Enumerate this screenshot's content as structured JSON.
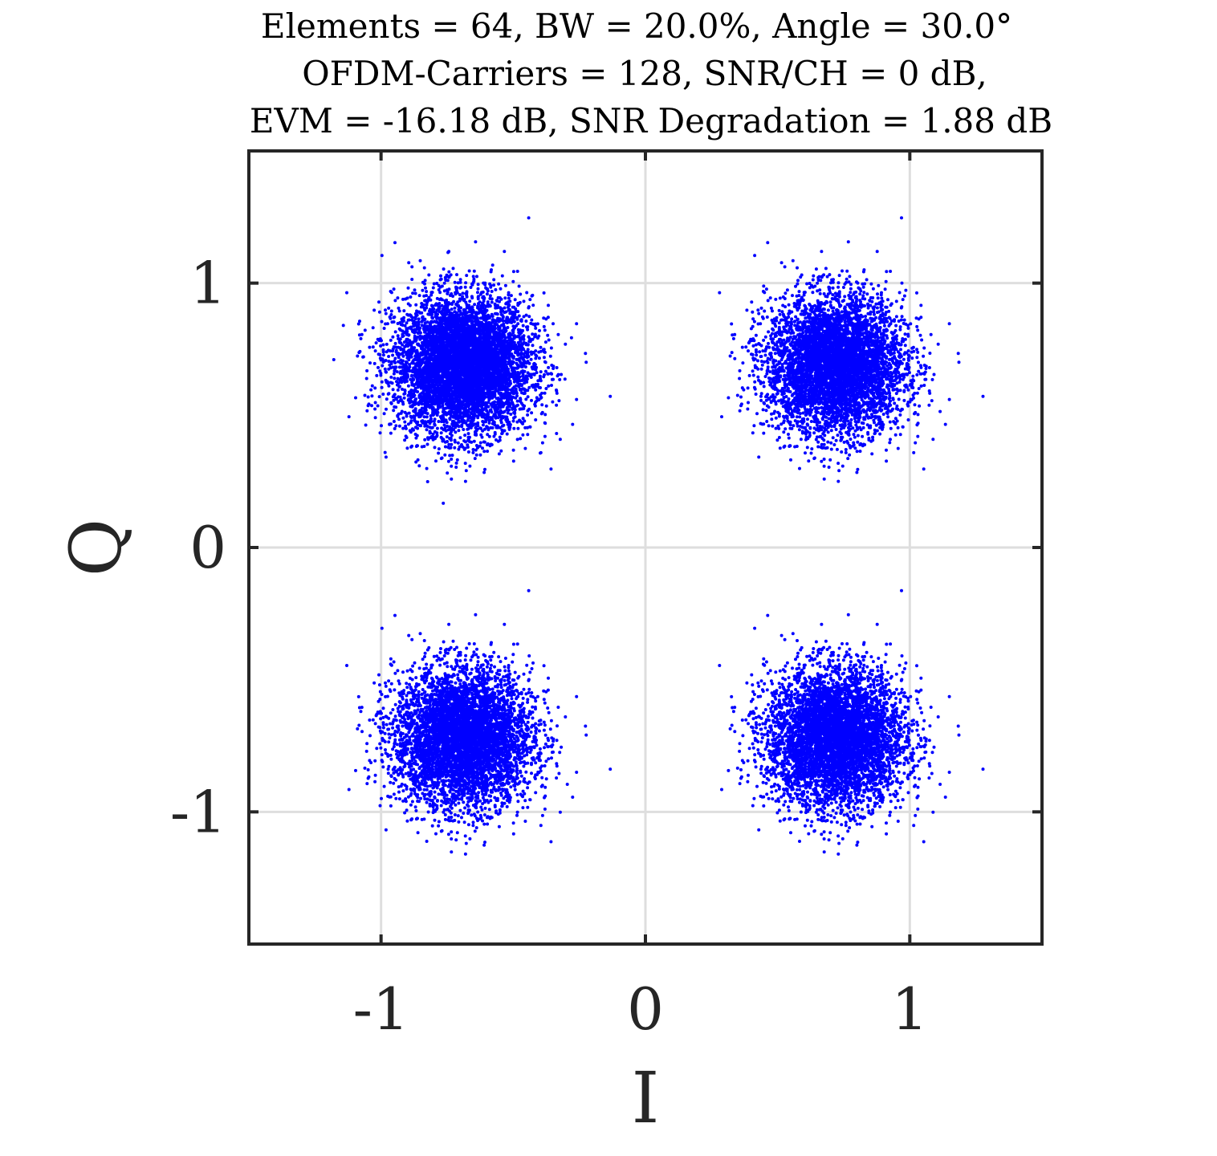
{
  "chart_data": {
    "type": "scatter",
    "title": [
      "Elements = 64, BW = 20.0%, Angle = 30.0°",
      "OFDM-Carriers = 128, SNR/CH = 0 dB,",
      "EVM = -16.18 dB, SNR Degradation = 1.88 dB"
    ],
    "xlabel": "I",
    "ylabel": "Q",
    "xlim": [
      -1.5,
      1.5
    ],
    "ylim": [
      -1.5,
      1.5
    ],
    "xticks": [
      -1,
      0,
      1
    ],
    "yticks": [
      -1,
      0,
      1
    ],
    "xtick_labels": [
      "-1",
      "0",
      "1"
    ],
    "ytick_labels": [
      "-1",
      "0",
      "1"
    ],
    "grid": true,
    "marker_color": "#0000ff",
    "series": [
      {
        "clusters": [
          {
            "center": [
              -0.69,
              0.69
            ],
            "spread": 0.13
          },
          {
            "center": [
              0.72,
              0.69
            ],
            "spread": 0.13
          },
          {
            "center": [
              -0.69,
              -0.72
            ],
            "spread": 0.13
          },
          {
            "center": [
              0.72,
              -0.72
            ],
            "spread": 0.13
          }
        ],
        "points_per_cluster": 6000
      }
    ]
  }
}
